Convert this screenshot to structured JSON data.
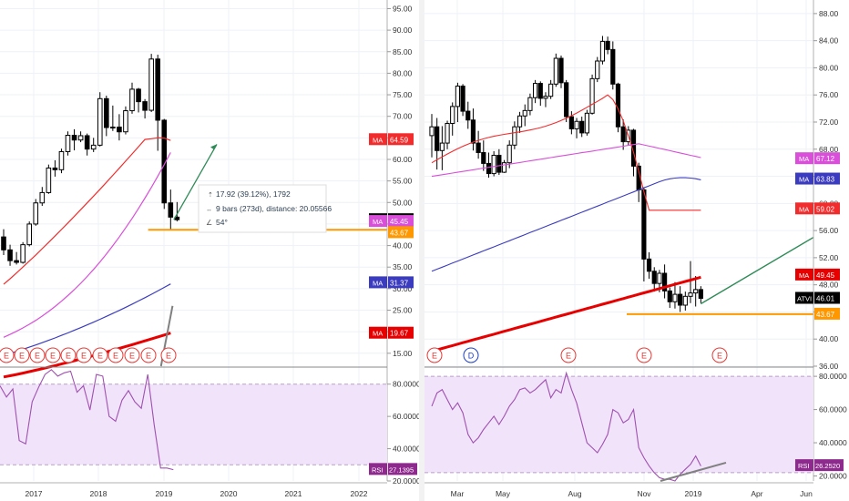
{
  "colors": {
    "up": "#ffffff",
    "down": "#000000",
    "ma_red": "#f22c2c",
    "ma_magenta": "#d94fd9",
    "ma_blue": "#3b3bbf",
    "ma_thick": "#e80000",
    "support": "#ff9800",
    "arrow": "#2e8b57",
    "rsi": "#a050b0",
    "rsi_band": "#f0e3fa",
    "trend_grey": "#808080",
    "earnings": "#e53935",
    "dividend": "#1e3fbf"
  },
  "left_panel": {
    "x_ticks": [
      "2017",
      "2018",
      "2019",
      "2020",
      "2021",
      "2022"
    ],
    "y_ticks": [
      "95.00",
      "90.00",
      "85.00",
      "80.00",
      "75.00",
      "70.00",
      "65.00",
      "60.00",
      "55.00",
      "50.00",
      "45.00",
      "40.00",
      "35.00",
      "30.00",
      "25.00",
      "20.00",
      "15.00"
    ],
    "ylim": [
      12,
      97
    ],
    "ticker": "ATVI",
    "last_price": "46.01",
    "support_level": 43.67,
    "badges": [
      {
        "label": "MA",
        "value": "64.59",
        "color": "#f22c2c",
        "price": 64.59
      },
      {
        "label": "MA",
        "value": "45.45",
        "color": "#d94fd9",
        "price": 45.45
      },
      {
        "label": "",
        "value": "43.67",
        "color": "#ff9800",
        "price": 43.67
      },
      {
        "label": "MA",
        "value": "31.37",
        "color": "#3b3bbf",
        "price": 31.37
      },
      {
        "label": "MA",
        "value": "19.67",
        "color": "#e80000",
        "price": 19.67
      }
    ],
    "measure": {
      "line1": "17.92 (39.12%), 1792",
      "line2": "9 bars (273d), distance: 20.05566",
      "line3": "54°"
    },
    "earnings_marks": [
      "E",
      "E",
      "E",
      "E",
      "E",
      "E",
      "E",
      "E",
      "E",
      "E",
      "E"
    ],
    "rsi_ticks": [
      "80.0000",
      "60.0000",
      "40.0000",
      "20.0000"
    ],
    "rsi_label": "RSI",
    "rsi_value": "27.1395"
  },
  "right_panel": {
    "x_ticks": [
      "Mar",
      "May",
      "Aug",
      "Nov",
      "2019",
      "Apr",
      "Jun"
    ],
    "y_ticks": [
      "88.00",
      "84.00",
      "80.00",
      "76.00",
      "72.00",
      "68.00",
      "64.00",
      "60.00",
      "56.00",
      "52.00",
      "48.00",
      "44.00",
      "40.00",
      "36.00"
    ],
    "ylim": [
      36,
      90
    ],
    "ticker": "ATVI",
    "last_price": "46.01",
    "support_level": 43.67,
    "badges": [
      {
        "label": "MA",
        "value": "67.12",
        "color": "#d94fd9",
        "price": 66.6
      },
      {
        "label": "MA",
        "value": "63.83",
        "color": "#3b3bbf",
        "price": 63.6
      },
      {
        "label": "MA",
        "value": "59.02",
        "color": "#f22c2c",
        "price": 59.2
      },
      {
        "label": "MA",
        "value": "49.45",
        "color": "#e80000",
        "price": 49.45
      },
      {
        "label": "",
        "value": "43.67",
        "color": "#ff9800",
        "price": 43.67
      }
    ],
    "event_marks": [
      "E",
      "D",
      "E",
      "E",
      "E"
    ],
    "rsi_ticks": [
      "80.0000",
      "60.0000",
      "40.0000",
      "20.0000"
    ],
    "rsi_label": "RSI",
    "rsi_value": "26.2520"
  },
  "chart_data": [
    {
      "type": "candlestick",
      "title": "",
      "symbol": "ATVI",
      "interval": "monthly",
      "x_range": [
        "2016-10",
        "2022-06"
      ],
      "ylim": [
        12,
        97
      ],
      "candles": [
        {
          "t": "2016-10",
          "o": 42.0,
          "h": 43.8,
          "l": 37.8,
          "c": 39.0
        },
        {
          "t": "2016-11",
          "o": 39.0,
          "h": 40.2,
          "l": 35.3,
          "c": 36.5
        },
        {
          "t": "2016-12",
          "o": 36.5,
          "h": 38.5,
          "l": 35.6,
          "c": 36.1
        },
        {
          "t": "2017-01",
          "o": 36.1,
          "h": 40.8,
          "l": 35.8,
          "c": 40.2
        },
        {
          "t": "2017-02",
          "o": 40.2,
          "h": 45.6,
          "l": 39.8,
          "c": 45.0
        },
        {
          "t": "2017-03",
          "o": 45.0,
          "h": 50.8,
          "l": 44.6,
          "c": 49.9
        },
        {
          "t": "2017-04",
          "o": 49.9,
          "h": 53.6,
          "l": 49.2,
          "c": 52.3
        },
        {
          "t": "2017-05",
          "o": 52.3,
          "h": 58.8,
          "l": 52.0,
          "c": 58.0
        },
        {
          "t": "2017-06",
          "o": 58.0,
          "h": 59.8,
          "l": 56.0,
          "c": 57.6
        },
        {
          "t": "2017-07",
          "o": 57.6,
          "h": 62.5,
          "l": 56.8,
          "c": 61.8
        },
        {
          "t": "2017-08",
          "o": 61.8,
          "h": 66.5,
          "l": 60.9,
          "c": 65.6
        },
        {
          "t": "2017-09",
          "o": 65.6,
          "h": 67.0,
          "l": 62.1,
          "c": 64.5
        },
        {
          "t": "2017-10",
          "o": 64.5,
          "h": 66.5,
          "l": 64.0,
          "c": 65.5
        },
        {
          "t": "2017-11",
          "o": 65.5,
          "h": 66.0,
          "l": 60.9,
          "c": 62.4
        },
        {
          "t": "2017-12",
          "o": 62.4,
          "h": 65.0,
          "l": 61.7,
          "c": 63.3
        },
        {
          "t": "2018-01",
          "o": 63.3,
          "h": 75.6,
          "l": 63.0,
          "c": 74.1
        },
        {
          "t": "2018-02",
          "o": 74.1,
          "h": 74.8,
          "l": 65.4,
          "c": 67.4
        },
        {
          "t": "2018-03",
          "o": 67.4,
          "h": 72.5,
          "l": 66.6,
          "c": 67.5
        },
        {
          "t": "2018-04",
          "o": 67.5,
          "h": 70.5,
          "l": 64.4,
          "c": 66.4
        },
        {
          "t": "2018-05",
          "o": 66.4,
          "h": 72.3,
          "l": 65.8,
          "c": 71.3
        },
        {
          "t": "2018-06",
          "o": 71.3,
          "h": 77.8,
          "l": 70.6,
          "c": 76.3
        },
        {
          "t": "2018-07",
          "o": 76.3,
          "h": 76.6,
          "l": 70.9,
          "c": 73.4
        },
        {
          "t": "2018-08",
          "o": 73.4,
          "h": 74.0,
          "l": 69.5,
          "c": 71.4
        },
        {
          "t": "2018-09",
          "o": 71.4,
          "h": 84.5,
          "l": 71.0,
          "c": 83.3
        },
        {
          "t": "2018-10",
          "o": 83.3,
          "h": 84.3,
          "l": 62.0,
          "c": 69.1
        },
        {
          "t": "2018-11",
          "o": 69.1,
          "h": 69.4,
          "l": 48.5,
          "c": 49.9
        },
        {
          "t": "2018-12",
          "o": 49.9,
          "h": 53.0,
          "l": 43.7,
          "c": 46.6
        },
        {
          "t": "2019-01",
          "o": 46.6,
          "h": 50.1,
          "l": 45.6,
          "c": 46.01
        }
      ],
      "moving_averages": [
        {
          "label": "MA",
          "value": 64.59
        },
        {
          "label": "MA",
          "value": 45.45
        },
        {
          "label": "MA",
          "value": 31.37
        },
        {
          "label": "MA",
          "value": 19.67
        }
      ],
      "support_line": 43.67,
      "rsi": {
        "value": 27.1395,
        "ylim": [
          20,
          90
        ],
        "band": [
          30,
          80
        ],
        "values": [
          79,
          72,
          77,
          45,
          43,
          69,
          78,
          86,
          89,
          85,
          87,
          88,
          75,
          79,
          64,
          86,
          85,
          60,
          57,
          70,
          76,
          69,
          65,
          86,
          55,
          28,
          28,
          27
        ]
      }
    },
    {
      "type": "candlestick",
      "title": "",
      "symbol": "ATVI",
      "interval": "weekly",
      "x_range": [
        "2018-01-15",
        "2019-06-15"
      ],
      "ylim": [
        36,
        90
      ],
      "candles": [
        {
          "t": "2018-01-22",
          "o": 70.0,
          "h": 73.2,
          "l": 66.8,
          "c": 71.3
        },
        {
          "t": "2018-01-29",
          "o": 71.3,
          "h": 72.6,
          "l": 65.0,
          "c": 67.8
        },
        {
          "t": "2018-02-05",
          "o": 67.8,
          "h": 71.4,
          "l": 64.9,
          "c": 68.9
        },
        {
          "t": "2018-02-12",
          "o": 68.9,
          "h": 72.2,
          "l": 68.0,
          "c": 71.8
        },
        {
          "t": "2018-02-19",
          "o": 71.8,
          "h": 74.9,
          "l": 70.0,
          "c": 74.3
        },
        {
          "t": "2018-02-26",
          "o": 74.3,
          "h": 77.8,
          "l": 72.0,
          "c": 77.3
        },
        {
          "t": "2018-03-05",
          "o": 77.3,
          "h": 77.6,
          "l": 72.9,
          "c": 73.6
        },
        {
          "t": "2018-03-12",
          "o": 73.6,
          "h": 75.0,
          "l": 71.0,
          "c": 72.3
        },
        {
          "t": "2018-03-19",
          "o": 72.3,
          "h": 74.0,
          "l": 67.8,
          "c": 68.9
        },
        {
          "t": "2018-03-26",
          "o": 68.9,
          "h": 70.7,
          "l": 66.6,
          "c": 67.5
        },
        {
          "t": "2018-04-02",
          "o": 67.5,
          "h": 69.3,
          "l": 64.8,
          "c": 65.9
        },
        {
          "t": "2018-04-09",
          "o": 65.9,
          "h": 67.5,
          "l": 63.8,
          "c": 64.4
        },
        {
          "t": "2018-04-16",
          "o": 64.4,
          "h": 67.7,
          "l": 64.0,
          "c": 67.1
        },
        {
          "t": "2018-04-23",
          "o": 67.1,
          "h": 68.0,
          "l": 64.2,
          "c": 64.6
        },
        {
          "t": "2018-04-30",
          "o": 64.6,
          "h": 66.4,
          "l": 64.5,
          "c": 66.0
        },
        {
          "t": "2018-05-07",
          "o": 66.0,
          "h": 69.3,
          "l": 65.2,
          "c": 68.6
        },
        {
          "t": "2018-05-14",
          "o": 68.6,
          "h": 72.1,
          "l": 68.0,
          "c": 71.3
        },
        {
          "t": "2018-05-21",
          "o": 71.3,
          "h": 73.5,
          "l": 70.4,
          "c": 72.9
        },
        {
          "t": "2018-05-28",
          "o": 72.9,
          "h": 74.6,
          "l": 71.4,
          "c": 73.7
        },
        {
          "t": "2018-06-04",
          "o": 73.7,
          "h": 76.2,
          "l": 73.0,
          "c": 75.6
        },
        {
          "t": "2018-06-11",
          "o": 75.6,
          "h": 78.2,
          "l": 74.8,
          "c": 77.7
        },
        {
          "t": "2018-06-18",
          "o": 77.7,
          "h": 78.0,
          "l": 74.4,
          "c": 75.5
        },
        {
          "t": "2018-06-25",
          "o": 75.5,
          "h": 76.4,
          "l": 74.2,
          "c": 75.8
        },
        {
          "t": "2018-07-02",
          "o": 75.8,
          "h": 78.2,
          "l": 75.4,
          "c": 77.6
        },
        {
          "t": "2018-07-09",
          "o": 77.6,
          "h": 82.1,
          "l": 77.2,
          "c": 81.4
        },
        {
          "t": "2018-07-16",
          "o": 81.4,
          "h": 81.8,
          "l": 77.0,
          "c": 77.8
        },
        {
          "t": "2018-07-23",
          "o": 77.8,
          "h": 78.2,
          "l": 72.0,
          "c": 72.8
        },
        {
          "t": "2018-07-30",
          "o": 72.8,
          "h": 73.6,
          "l": 70.2,
          "c": 71.0
        },
        {
          "t": "2018-08-06",
          "o": 71.0,
          "h": 72.6,
          "l": 69.6,
          "c": 72.1
        },
        {
          "t": "2018-08-13",
          "o": 72.1,
          "h": 72.8,
          "l": 69.8,
          "c": 70.4
        },
        {
          "t": "2018-08-20",
          "o": 70.4,
          "h": 73.8,
          "l": 70.0,
          "c": 73.3
        },
        {
          "t": "2018-08-27",
          "o": 73.3,
          "h": 79.0,
          "l": 73.1,
          "c": 78.4
        },
        {
          "t": "2018-09-03",
          "o": 78.4,
          "h": 81.6,
          "l": 77.9,
          "c": 81.0
        },
        {
          "t": "2018-09-10",
          "o": 81.0,
          "h": 84.7,
          "l": 80.5,
          "c": 83.9
        },
        {
          "t": "2018-09-17",
          "o": 83.9,
          "h": 84.6,
          "l": 82.0,
          "c": 82.7
        },
        {
          "t": "2018-09-24",
          "o": 82.7,
          "h": 83.9,
          "l": 76.8,
          "c": 77.6
        },
        {
          "t": "2018-10-01",
          "o": 77.6,
          "h": 77.8,
          "l": 70.5,
          "c": 71.3
        },
        {
          "t": "2018-10-08",
          "o": 71.3,
          "h": 72.4,
          "l": 67.9,
          "c": 69.1
        },
        {
          "t": "2018-10-15",
          "o": 69.1,
          "h": 71.4,
          "l": 68.6,
          "c": 70.8
        },
        {
          "t": "2018-10-22",
          "o": 70.8,
          "h": 71.0,
          "l": 64.0,
          "c": 65.5
        },
        {
          "t": "2018-10-29",
          "o": 65.5,
          "h": 66.0,
          "l": 60.2,
          "c": 62.0
        },
        {
          "t": "2018-11-05",
          "o": 62.0,
          "h": 62.4,
          "l": 48.5,
          "c": 51.8
        },
        {
          "t": "2018-11-12",
          "o": 51.8,
          "h": 52.8,
          "l": 48.9,
          "c": 50.0
        },
        {
          "t": "2018-11-19",
          "o": 50.0,
          "h": 50.6,
          "l": 47.0,
          "c": 48.2
        },
        {
          "t": "2018-11-26",
          "o": 48.2,
          "h": 50.2,
          "l": 46.9,
          "c": 49.7
        },
        {
          "t": "2018-12-03",
          "o": 49.7,
          "h": 51.0,
          "l": 46.0,
          "c": 47.1
        },
        {
          "t": "2018-12-10",
          "o": 47.1,
          "h": 47.6,
          "l": 44.6,
          "c": 45.5
        },
        {
          "t": "2018-12-17",
          "o": 45.5,
          "h": 48.4,
          "l": 44.5,
          "c": 46.6
        },
        {
          "t": "2018-12-24",
          "o": 46.6,
          "h": 47.8,
          "l": 44.0,
          "c": 45.0
        },
        {
          "t": "2018-12-31",
          "o": 45.0,
          "h": 47.0,
          "l": 44.2,
          "c": 46.3
        },
        {
          "t": "2019-01-07",
          "o": 46.3,
          "h": 51.5,
          "l": 45.3,
          "c": 46.8
        },
        {
          "t": "2019-01-14",
          "o": 46.8,
          "h": 49.3,
          "l": 44.8,
          "c": 47.3
        },
        {
          "t": "2019-01-21",
          "o": 47.3,
          "h": 47.8,
          "l": 45.3,
          "c": 46.01
        }
      ],
      "moving_averages": [
        {
          "label": "MA",
          "value": 67.12
        },
        {
          "label": "MA",
          "value": 63.83
        },
        {
          "label": "MA",
          "value": 59.02
        },
        {
          "label": "MA",
          "value": 49.45
        }
      ],
      "support_line": 43.67,
      "rsi": {
        "value": 26.252,
        "ylim": [
          17,
          85
        ],
        "band": [
          22,
          80
        ],
        "values": [
          62,
          70,
          72,
          66,
          60,
          64,
          58,
          45,
          40,
          43,
          48,
          52,
          56,
          51,
          56,
          62,
          66,
          72,
          73,
          70,
          72,
          75,
          78,
          67,
          72,
          70,
          82,
          72,
          64,
          52,
          40,
          37,
          34,
          39,
          45,
          60,
          58,
          52,
          54,
          60,
          37,
          31,
          26,
          22,
          19,
          18,
          18,
          17,
          21,
          24,
          27,
          32,
          26
        ]
      }
    }
  ]
}
